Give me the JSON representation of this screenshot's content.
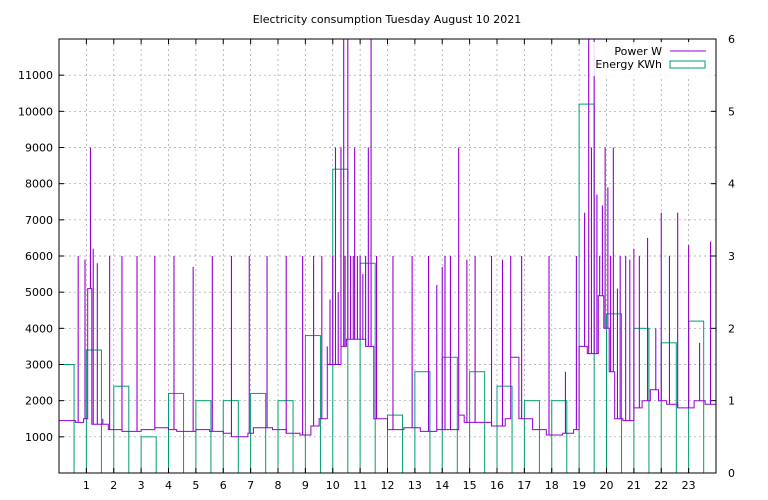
{
  "chart_data": {
    "type": "line",
    "title": "Electricity consumption Tuesday August 10 2021",
    "xlabel": "",
    "ylabel": "",
    "y2label": "",
    "xlim": [
      0,
      24
    ],
    "ylim": [
      0,
      12000
    ],
    "y2lim": [
      0,
      6
    ],
    "x_ticks": [
      1,
      2,
      3,
      4,
      5,
      6,
      7,
      8,
      9,
      10,
      11,
      12,
      13,
      14,
      15,
      16,
      17,
      18,
      19,
      20,
      21,
      22,
      23
    ],
    "y_ticks": [
      1000,
      2000,
      3000,
      4000,
      5000,
      6000,
      7000,
      8000,
      9000,
      10000,
      11000
    ],
    "y2_ticks": [
      0,
      1,
      2,
      3,
      4,
      5,
      6
    ],
    "grid": true,
    "legend": "top-right",
    "colors": {
      "power": "#9400d3",
      "energy": "#009e73"
    },
    "series": [
      {
        "name": "Power W",
        "axis": "left",
        "style": "step-line",
        "baseline": [
          [
            0.0,
            1450
          ],
          [
            0.6,
            1400
          ],
          [
            0.9,
            1500
          ],
          [
            1.05,
            5100
          ],
          [
            1.2,
            1350
          ],
          [
            1.8,
            1200
          ],
          [
            2.3,
            1150
          ],
          [
            3.0,
            1200
          ],
          [
            3.5,
            1250
          ],
          [
            4.0,
            1200
          ],
          [
            4.3,
            1150
          ],
          [
            5.0,
            1200
          ],
          [
            5.5,
            1150
          ],
          [
            6.0,
            1100
          ],
          [
            6.3,
            1000
          ],
          [
            6.9,
            1100
          ],
          [
            7.1,
            1250
          ],
          [
            7.8,
            1200
          ],
          [
            8.3,
            1100
          ],
          [
            8.8,
            1050
          ],
          [
            9.2,
            1300
          ],
          [
            9.5,
            1500
          ],
          [
            9.8,
            3000
          ],
          [
            10.3,
            3500
          ],
          [
            10.5,
            3700
          ],
          [
            11.2,
            3500
          ],
          [
            11.5,
            1500
          ],
          [
            12.0,
            1200
          ],
          [
            12.6,
            1250
          ],
          [
            13.2,
            1150
          ],
          [
            13.8,
            1200
          ],
          [
            14.2,
            1200
          ],
          [
            14.6,
            1600
          ],
          [
            14.8,
            1400
          ],
          [
            15.2,
            1400
          ],
          [
            15.8,
            1300
          ],
          [
            16.3,
            1500
          ],
          [
            16.5,
            3200
          ],
          [
            16.8,
            1500
          ],
          [
            17.3,
            1200
          ],
          [
            17.8,
            1050
          ],
          [
            18.4,
            1100
          ],
          [
            18.8,
            1200
          ],
          [
            19.0,
            3500
          ],
          [
            19.3,
            3300
          ],
          [
            19.7,
            4900
          ],
          [
            19.9,
            4000
          ],
          [
            20.1,
            2800
          ],
          [
            20.3,
            1500
          ],
          [
            20.6,
            1450
          ],
          [
            21.0,
            1800
          ],
          [
            21.3,
            2000
          ],
          [
            21.6,
            2300
          ],
          [
            21.9,
            2000
          ],
          [
            22.2,
            1900
          ],
          [
            22.6,
            1800
          ],
          [
            23.2,
            2000
          ],
          [
            23.6,
            1900
          ],
          [
            24.0,
            1900
          ]
        ],
        "spikes": [
          [
            0.7,
            6000
          ],
          [
            0.95,
            5900
          ],
          [
            1.15,
            9000
          ],
          [
            1.25,
            6200
          ],
          [
            1.4,
            5800
          ],
          [
            1.6,
            1500
          ],
          [
            1.85,
            6000
          ],
          [
            2.3,
            6000
          ],
          [
            2.85,
            6000
          ],
          [
            3.5,
            6000
          ],
          [
            4.2,
            6000
          ],
          [
            4.9,
            5700
          ],
          [
            5.6,
            6000
          ],
          [
            6.3,
            6000
          ],
          [
            6.95,
            6000
          ],
          [
            7.6,
            6000
          ],
          [
            8.3,
            6000
          ],
          [
            8.9,
            6000
          ],
          [
            9.3,
            6000
          ],
          [
            9.6,
            6000
          ],
          [
            9.8,
            3500
          ],
          [
            9.9,
            4800
          ],
          [
            10.0,
            6000
          ],
          [
            10.1,
            9000
          ],
          [
            10.2,
            5000
          ],
          [
            10.3,
            9000
          ],
          [
            10.4,
            12000
          ],
          [
            10.45,
            6000
          ],
          [
            10.55,
            12000
          ],
          [
            10.65,
            6000
          ],
          [
            10.75,
            6000
          ],
          [
            10.8,
            9000
          ],
          [
            10.9,
            6000
          ],
          [
            11.0,
            6000
          ],
          [
            11.1,
            5500
          ],
          [
            11.2,
            6000
          ],
          [
            11.3,
            9000
          ],
          [
            11.4,
            12000
          ],
          [
            11.6,
            6000
          ],
          [
            12.2,
            6000
          ],
          [
            12.9,
            6000
          ],
          [
            13.5,
            6000
          ],
          [
            13.8,
            5200
          ],
          [
            14.0,
            5700
          ],
          [
            14.1,
            6000
          ],
          [
            14.3,
            6000
          ],
          [
            14.6,
            9000
          ],
          [
            14.9,
            5900
          ],
          [
            15.2,
            6000
          ],
          [
            15.8,
            6000
          ],
          [
            16.2,
            5900
          ],
          [
            16.5,
            6000
          ],
          [
            16.9,
            6000
          ],
          [
            17.9,
            6000
          ],
          [
            18.5,
            2800
          ],
          [
            18.9,
            6000
          ],
          [
            19.2,
            7200
          ],
          [
            19.35,
            12000
          ],
          [
            19.45,
            9000
          ],
          [
            19.55,
            12000
          ],
          [
            19.65,
            7700
          ],
          [
            19.75,
            6000
          ],
          [
            19.85,
            7400
          ],
          [
            19.95,
            9000
          ],
          [
            20.05,
            7900
          ],
          [
            20.15,
            6000
          ],
          [
            20.25,
            9000
          ],
          [
            20.4,
            5100
          ],
          [
            20.5,
            6000
          ],
          [
            20.7,
            6000
          ],
          [
            20.85,
            5900
          ],
          [
            21.0,
            6200
          ],
          [
            21.2,
            6000
          ],
          [
            21.5,
            6500
          ],
          [
            21.8,
            4000
          ],
          [
            22.0,
            7200
          ],
          [
            22.3,
            6000
          ],
          [
            22.6,
            7200
          ],
          [
            23.0,
            6300
          ],
          [
            23.4,
            3600
          ],
          [
            23.8,
            6400
          ]
        ]
      },
      {
        "name": "Energy KWh",
        "axis": "right",
        "style": "histogram",
        "bins": [
          [
            0,
            1.5
          ],
          [
            1,
            1.7
          ],
          [
            2,
            1.2
          ],
          [
            3,
            0.5
          ],
          [
            4,
            1.1
          ],
          [
            5,
            1.0
          ],
          [
            6,
            1.0
          ],
          [
            7,
            1.1
          ],
          [
            8,
            1.0
          ],
          [
            9,
            1.9
          ],
          [
            10,
            4.2
          ],
          [
            11,
            2.9
          ],
          [
            12,
            0.8
          ],
          [
            13,
            1.4
          ],
          [
            14,
            1.6
          ],
          [
            15,
            1.4
          ],
          [
            16,
            1.2
          ],
          [
            17,
            1.0
          ],
          [
            18,
            1.0
          ],
          [
            19,
            5.1
          ],
          [
            20,
            2.2
          ],
          [
            21,
            2.0
          ],
          [
            22,
            1.8
          ],
          [
            23,
            2.1
          ]
        ]
      }
    ]
  }
}
